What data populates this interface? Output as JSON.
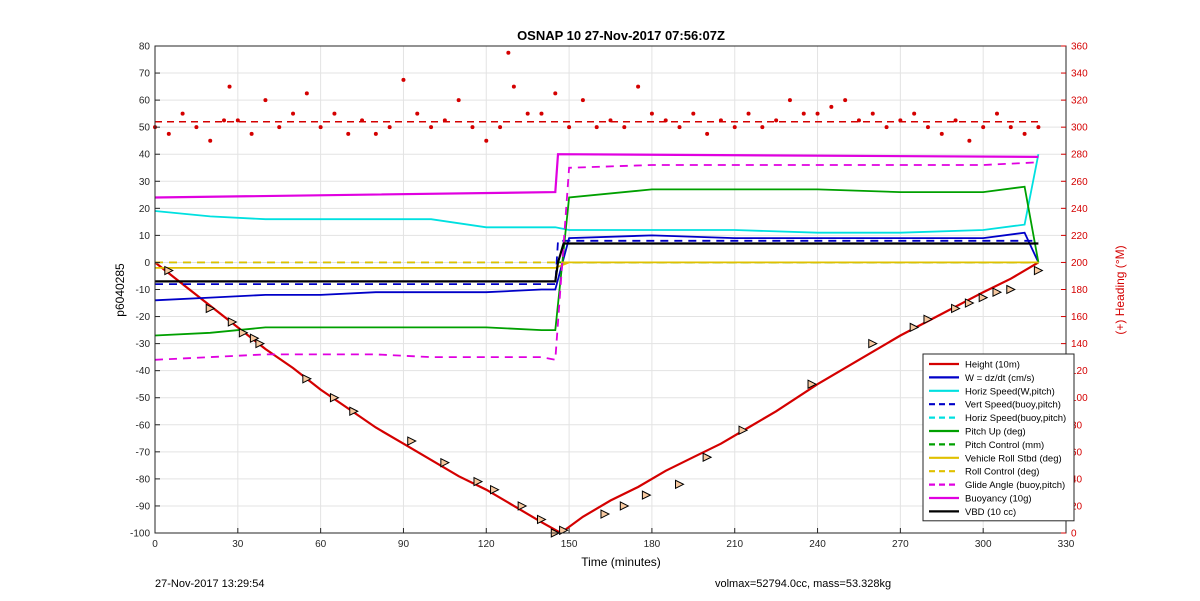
{
  "chart_data": {
    "type": "line",
    "title": "OSNAP 10 27-Nov-2017 07:56:07Z",
    "xlabel": "Time (minutes)",
    "ylabel_left": "p6040285",
    "ylabel_right": "(+) Heading (°M)",
    "xlim": [
      0,
      330
    ],
    "ylim_left": [
      -100,
      80
    ],
    "ylim_right": [
      0,
      360
    ],
    "xticks": [
      "0",
      "30",
      "60",
      "90",
      "120",
      "150",
      "180",
      "210",
      "240",
      "270",
      "300",
      "330"
    ],
    "yticks_left": [
      "80",
      "70",
      "60",
      "50",
      "40",
      "30",
      "20",
      "10",
      "0",
      "-10",
      "-20",
      "-30",
      "-40",
      "-50",
      "-60",
      "-70",
      "-80",
      "-90",
      "-100"
    ],
    "yticks_right": [
      "360",
      "340",
      "320",
      "300",
      "280",
      "260",
      "240",
      "220",
      "200",
      "180",
      "160",
      "140",
      "120",
      "100",
      "80",
      "60",
      "40",
      "20",
      "0"
    ],
    "grid": true,
    "legend_position": "bottom-right",
    "legend": [
      {
        "label": "Height (10m)",
        "color": "#d40000",
        "style": "solid"
      },
      {
        "label": "W = dz/dt (cm/s)",
        "color": "#0000c8",
        "style": "solid"
      },
      {
        "label": "Horiz Speed(W,pitch)",
        "color": "#00e0e0",
        "style": "solid"
      },
      {
        "label": "Vert Speed(buoy,pitch)",
        "color": "#0000c8",
        "style": "dashed"
      },
      {
        "label": "Horiz Speed(buoy,pitch)",
        "color": "#00e0e0",
        "style": "dashed"
      },
      {
        "label": "Pitch Up (deg)",
        "color": "#00a000",
        "style": "solid"
      },
      {
        "label": "Pitch Control (mm)",
        "color": "#00a000",
        "style": "dashed"
      },
      {
        "label": "Vehicle Roll Stbd (deg)",
        "color": "#e0c000",
        "style": "solid"
      },
      {
        "label": "Roll Control (deg)",
        "color": "#e0c000",
        "style": "dashed"
      },
      {
        "label": "Glide Angle (buoy,pitch)",
        "color": "#e000e0",
        "style": "dashed"
      },
      {
        "label": "Buoyancy (10g)",
        "color": "#e000e0",
        "style": "solid"
      },
      {
        "label": "VBD (10 cc)",
        "color": "#000000",
        "style": "solid"
      }
    ],
    "series": [
      {
        "name": "Height (10m)",
        "x": [
          0,
          10,
          20,
          30,
          40,
          50,
          60,
          70,
          80,
          90,
          100,
          110,
          120,
          130,
          140,
          147,
          155,
          165,
          175,
          185,
          195,
          205,
          215,
          225,
          240,
          255,
          270,
          285,
          300,
          310,
          320
        ],
        "y": [
          0,
          -8,
          -16,
          -24,
          -32,
          -39,
          -47,
          -54,
          -61,
          -67,
          -73,
          -79,
          -84,
          -90,
          -96,
          -100,
          -94,
          -88,
          -83,
          -77,
          -72,
          -67,
          -61,
          -55,
          -45,
          -36,
          -27,
          -19,
          -11,
          -6,
          0
        ]
      },
      {
        "name": "W = dz/dt (cm/s)",
        "x": [
          0,
          20,
          40,
          60,
          80,
          100,
          120,
          140,
          145,
          150,
          180,
          210,
          240,
          270,
          300,
          315,
          320
        ],
        "y": [
          -14,
          -13,
          -12,
          -12,
          -11,
          -11,
          -11,
          -10,
          -10,
          9,
          10,
          9,
          9,
          9,
          9,
          11,
          0
        ]
      },
      {
        "name": "Horiz Speed(W,pitch)",
        "x": [
          0,
          20,
          40,
          60,
          80,
          100,
          120,
          140,
          145,
          150,
          180,
          210,
          240,
          270,
          300,
          315,
          320
        ],
        "y": [
          19,
          17,
          16,
          16,
          16,
          16,
          13,
          13,
          13,
          12,
          12,
          12,
          11,
          11,
          12,
          14,
          40
        ]
      },
      {
        "name": "Vert Speed(buoy,pitch)",
        "x": [
          0,
          145,
          146,
          320
        ],
        "y": [
          -8,
          -8,
          8,
          8
        ]
      },
      {
        "name": "Horiz Speed(buoy,pitch)",
        "x": [
          0,
          145,
          146,
          320
        ],
        "y": [
          0,
          0,
          0,
          0
        ]
      },
      {
        "name": "Pitch Up (deg)",
        "x": [
          0,
          20,
          40,
          60,
          80,
          100,
          120,
          140,
          145,
          150,
          180,
          210,
          240,
          270,
          300,
          315,
          320
        ],
        "y": [
          -27,
          -26,
          -24,
          -24,
          -24,
          -24,
          -24,
          -25,
          -25,
          24,
          27,
          27,
          27,
          26,
          26,
          28,
          0
        ]
      },
      {
        "name": "Pitch Control (mm)",
        "x": [
          0,
          145,
          146,
          320
        ],
        "y": [
          -7,
          -7,
          0,
          0
        ]
      },
      {
        "name": "Vehicle Roll Stbd (deg)",
        "x": [
          0,
          20,
          40,
          60,
          80,
          100,
          120,
          140,
          145,
          150,
          180,
          210,
          240,
          270,
          300,
          320
        ],
        "y": [
          -2,
          -2,
          -2,
          -2,
          -2,
          -2,
          -2,
          -2,
          -2,
          0,
          0,
          0,
          0,
          0,
          0,
          0
        ]
      },
      {
        "name": "Roll Control (deg)",
        "x": [
          0,
          145,
          146,
          320
        ],
        "y": [
          0,
          0,
          0,
          0
        ]
      },
      {
        "name": "Glide Angle (buoy,pitch)",
        "x": [
          0,
          20,
          40,
          60,
          80,
          100,
          120,
          140,
          145,
          150,
          180,
          210,
          240,
          270,
          300,
          320
        ],
        "y": [
          -36,
          -35,
          -34,
          -34,
          -34,
          -35,
          -35,
          -35,
          -36,
          35,
          36,
          36,
          36,
          36,
          36,
          37
        ]
      },
      {
        "name": "Buoyancy (10g)",
        "x": [
          0,
          145,
          146,
          320
        ],
        "y": [
          24,
          26,
          40,
          39
        ]
      },
      {
        "name": "VBD (10 cc)",
        "x": [
          0,
          145,
          146,
          148,
          320
        ],
        "y": [
          -7,
          -7,
          0,
          7,
          7
        ]
      }
    ],
    "heading": {
      "name": "(+) Heading (°M)",
      "mean": 304,
      "x": [
        0,
        5,
        10,
        15,
        20,
        25,
        27,
        30,
        35,
        40,
        45,
        50,
        55,
        60,
        65,
        70,
        75,
        80,
        85,
        90,
        95,
        100,
        105,
        110,
        115,
        120,
        125,
        128,
        130,
        135,
        140,
        145,
        150,
        155,
        160,
        165,
        170,
        175,
        180,
        185,
        190,
        195,
        200,
        205,
        210,
        215,
        220,
        225,
        230,
        235,
        240,
        245,
        250,
        255,
        260,
        265,
        270,
        275,
        280,
        285,
        290,
        295,
        300,
        305,
        310,
        315,
        320
      ],
      "y": [
        300,
        295,
        310,
        300,
        290,
        305,
        330,
        305,
        295,
        320,
        300,
        310,
        325,
        300,
        310,
        295,
        305,
        295,
        300,
        335,
        310,
        300,
        305,
        320,
        300,
        290,
        300,
        355,
        330,
        310,
        310,
        325,
        300,
        320,
        300,
        305,
        300,
        330,
        310,
        305,
        300,
        310,
        295,
        305,
        300,
        310,
        300,
        305,
        320,
        310,
        310,
        315,
        320,
        305,
        310,
        300,
        305,
        310,
        300,
        295,
        305,
        290,
        300,
        310,
        300,
        295,
        300
      ]
    },
    "markers": {
      "x": [
        5,
        20,
        28,
        32,
        36,
        38,
        55,
        65,
        72,
        93,
        105,
        117,
        123,
        133,
        140,
        145,
        148,
        163,
        170,
        178,
        190,
        200,
        213,
        238,
        260,
        275,
        280,
        290,
        295,
        300,
        305,
        310,
        320
      ],
      "y": [
        -3,
        -17,
        -22,
        -26,
        -28,
        -30,
        -43,
        -50,
        -55,
        -66,
        -74,
        -81,
        -84,
        -90,
        -95,
        -100,
        -99,
        -93,
        -90,
        -86,
        -82,
        -72,
        -62,
        -45,
        -30,
        -24,
        -21,
        -17,
        -15,
        -13,
        -11,
        -10,
        -3
      ]
    }
  },
  "footer": {
    "timestamp": "27-Nov-2017 13:29:54",
    "volmax": "volmax=52794.0cc, mass=53.328kg"
  }
}
